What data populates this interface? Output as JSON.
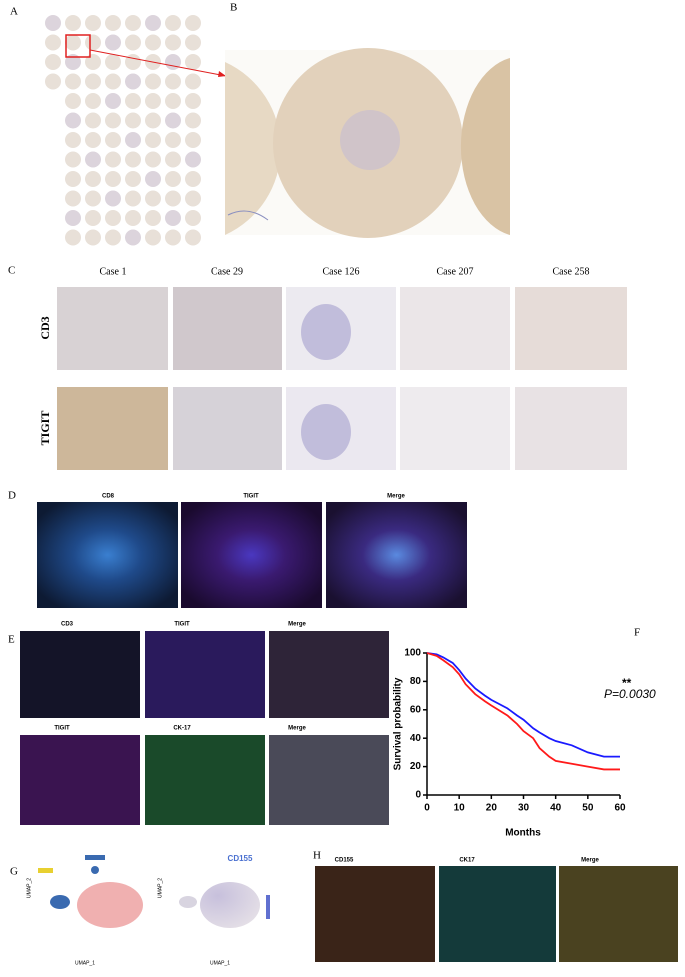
{
  "figure": {
    "panel_labels": [
      "A",
      "B",
      "C",
      "D",
      "E",
      "F",
      "G",
      "H"
    ],
    "C": {
      "cases": [
        "Case 1",
        "Case 29",
        "Case 126",
        "Case 207",
        "Case 258"
      ],
      "rows": [
        "CD3",
        "TIGIT"
      ]
    },
    "D": {
      "titles": [
        "CD8",
        "TIGIT",
        "Merge"
      ]
    },
    "E": {
      "titles": [
        "CD3",
        "TIGIT",
        "Merge",
        "TIGIT",
        "CK-17",
        "Merge"
      ]
    },
    "G": {
      "marker": "CD155",
      "x_label": "UMAP_1",
      "y_label": "UMAP_2"
    },
    "H": {
      "titles": [
        "CD155",
        "CK17",
        "Merge"
      ]
    }
  },
  "chart_data": {
    "type": "line",
    "x_label": "Months",
    "y_label": "Survival probability",
    "annotations": [
      "**",
      "P=0.0030"
    ],
    "x": [
      0,
      3,
      5,
      8,
      10,
      12,
      15,
      18,
      20,
      25,
      28,
      30,
      33,
      35,
      38,
      40,
      45,
      50,
      55,
      60
    ],
    "series": [
      {
        "color": "#1a1aff",
        "values": [
          100,
          99,
          97,
          93,
          88,
          82,
          75,
          70,
          67,
          61,
          56,
          53,
          47,
          44,
          40,
          38,
          35,
          30,
          27,
          27
        ]
      },
      {
        "color": "#ff1a1a",
        "values": [
          100,
          98,
          95,
          90,
          85,
          78,
          71,
          66,
          63,
          56,
          50,
          45,
          40,
          33,
          27,
          24,
          22,
          20,
          18,
          18
        ]
      }
    ],
    "xlim": [
      0,
      60
    ],
    "xticks": [
      0,
      10,
      20,
      30,
      40,
      50,
      60
    ],
    "ylim": [
      0,
      100
    ],
    "yticks": [
      0,
      20,
      40,
      60,
      80,
      100
    ]
  }
}
